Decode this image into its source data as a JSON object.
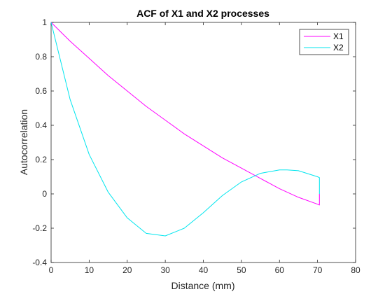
{
  "chart_data": {
    "type": "line",
    "title": "ACF of X1 and X2 processes",
    "xlabel": "Distance (mm)",
    "ylabel": "Autocorrelation",
    "xlim": [
      0,
      80
    ],
    "ylim": [
      -0.4,
      1
    ],
    "xticks": [
      0,
      10,
      20,
      30,
      40,
      50,
      60,
      70,
      80
    ],
    "yticks": [
      -0.4,
      -0.2,
      0,
      0.2,
      0.4,
      0.6,
      0.8,
      1
    ],
    "ytick_labels": [
      "-0.4",
      "-0.2",
      "0",
      "0.2",
      "0.4",
      "0.6",
      "0.8",
      "1"
    ],
    "grid": false,
    "legend_position": "top-right",
    "series": [
      {
        "name": "X1",
        "color": "#ff00ff",
        "x": [
          0,
          5,
          10,
          15,
          20,
          25,
          30,
          35,
          40,
          45,
          50,
          55,
          60,
          65,
          70,
          70.5,
          70.5
        ],
        "y": [
          1,
          0.89,
          0.79,
          0.69,
          0.6,
          0.51,
          0.43,
          0.35,
          0.28,
          0.21,
          0.15,
          0.09,
          0.03,
          -0.02,
          -0.06,
          -0.065,
          0
        ]
      },
      {
        "name": "X2",
        "color": "#00e5ee",
        "x": [
          0,
          5,
          10,
          15,
          20,
          25,
          30,
          35,
          40,
          45,
          50,
          55,
          60,
          62,
          65,
          70,
          70.5,
          70.5
        ],
        "y": [
          1,
          0.55,
          0.23,
          0.01,
          -0.14,
          -0.23,
          -0.245,
          -0.2,
          -0.11,
          -0.01,
          0.07,
          0.12,
          0.14,
          0.14,
          0.135,
          0.1,
          0.095,
          0
        ]
      }
    ]
  }
}
